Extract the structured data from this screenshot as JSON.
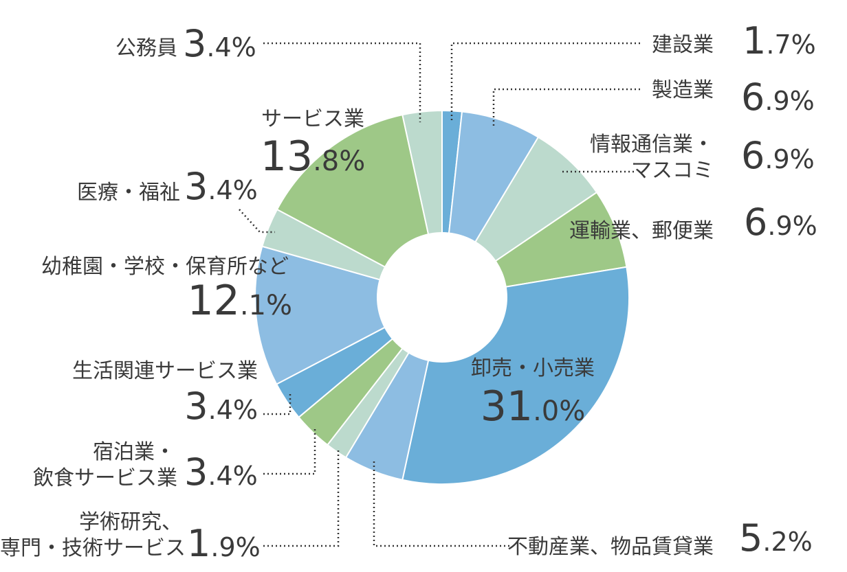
{
  "chart_data": {
    "type": "pie",
    "donut": true,
    "slices": [
      {
        "label": "建設業",
        "value": 1.7,
        "color": "#6aaed8"
      },
      {
        "label": "製造業",
        "value": 6.9,
        "color": "#8dbde2"
      },
      {
        "label": "情報通信業・マスコミ",
        "value": 6.9,
        "color": "#bcdacd"
      },
      {
        "label": "運輸業、郵便業",
        "value": 6.9,
        "color": "#9ec887"
      },
      {
        "label": "卸売・小売業",
        "value": 31.0,
        "color": "#6aaed8"
      },
      {
        "label": "不動産業、物品賃貸業",
        "value": 5.2,
        "color": "#8dbde2"
      },
      {
        "label": "学術研究、専門・技術サービス",
        "value": 1.9,
        "color": "#bcdacd"
      },
      {
        "label": "宿泊業・飲食サービス業",
        "value": 3.4,
        "color": "#9ec887"
      },
      {
        "label": "生活関連サービス業",
        "value": 3.4,
        "color": "#6aaed8"
      },
      {
        "label": "幼稚園・学校・保育所など",
        "value": 12.1,
        "color": "#8dbde2"
      },
      {
        "label": "医療・福祉",
        "value": 3.4,
        "color": "#bcdacd"
      },
      {
        "label": "サービス業",
        "value": 13.8,
        "color": "#9ec887"
      },
      {
        "label": "公務員",
        "value": 3.4,
        "color": "#bcdacd"
      }
    ]
  },
  "labels": {
    "kensetsu": {
      "name": "建設業",
      "int": "1",
      "dec": ".7%"
    },
    "seizo": {
      "name": "製造業",
      "int": "6",
      "dec": ".9%"
    },
    "joho": {
      "name1": "情報通信業・",
      "name2": "マスコミ",
      "int": "6",
      "dec": ".9%"
    },
    "unyu": {
      "name": "運輸業、郵便業",
      "int": "6",
      "dec": ".9%"
    },
    "oroshi": {
      "name": "卸売・小売業",
      "int": "31",
      "dec": ".0%"
    },
    "fudosan": {
      "name": "不動産業、物品賃貸業",
      "int": "5",
      "dec": ".2%"
    },
    "gakujutsu": {
      "name1": "学術研究、",
      "name2": "専門・技術サービス",
      "int": "1",
      "dec": ".9%"
    },
    "shukuhaku": {
      "name1": "宿泊業・",
      "name2": "飲食サービス業",
      "int": "3",
      "dec": ".4%"
    },
    "seikatsu": {
      "name": "生活関連サービス業",
      "int": "3",
      "dec": ".4%"
    },
    "yochien": {
      "name": "幼稚園・学校・保育所など",
      "int": "12",
      "dec": ".1%"
    },
    "iryo": {
      "name": "医療・福祉",
      "int": "3",
      "dec": ".4%"
    },
    "service": {
      "name": "サービス業",
      "int": "13",
      "dec": ".8%"
    },
    "komuin": {
      "name": "公務員",
      "int": "3",
      "dec": ".4%"
    }
  }
}
